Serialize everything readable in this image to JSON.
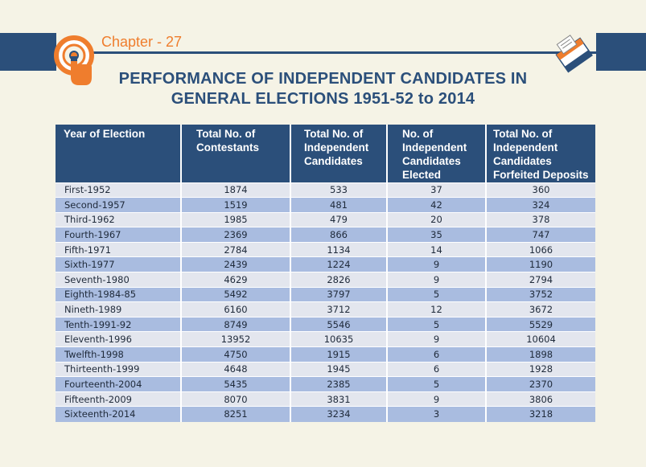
{
  "header": {
    "chapter_label": "Chapter - 27",
    "title_line1": "PERFORMANCE OF INDEPENDENT CANDIDATES IN",
    "title_line2": "GENERAL ELECTIONS 1951-52 to 2014",
    "colors": {
      "band": "#2b4f7a",
      "accent": "#ef7d2d",
      "title": "#2b4f7a"
    },
    "left_icon": "hand-ink-finger-icon",
    "right_icon": "ballot-box-icon"
  },
  "table": {
    "columns": [
      "Year of Election",
      "Total No. of Contestants",
      "Total No. of Independent Candidates",
      "No. of Independent Candidates Elected",
      "Total No. of Independent Candidates Forfeited Deposits"
    ],
    "rows": [
      [
        "First-1952",
        "1874",
        "533",
        "37",
        "360"
      ],
      [
        "Second-1957",
        "1519",
        "481",
        "42",
        "324"
      ],
      [
        "Third-1962",
        "1985",
        "479",
        "20",
        "378"
      ],
      [
        "Fourth-1967",
        "2369",
        "866",
        "35",
        "747"
      ],
      [
        "Fifth-1971",
        "2784",
        "1134",
        "14",
        "1066"
      ],
      [
        "Sixth-1977",
        "2439",
        "1224",
        "9",
        "1190"
      ],
      [
        "Seventh-1980",
        "4629",
        "2826",
        "9",
        "2794"
      ],
      [
        "Eighth-1984-85",
        "5492",
        "3797",
        "5",
        "3752"
      ],
      [
        "Nineth-1989",
        "6160",
        "3712",
        "12",
        "3672"
      ],
      [
        "Tenth-1991-92",
        "8749",
        "5546",
        "5",
        "5529"
      ],
      [
        "Eleventh-1996",
        "13952",
        "10635",
        "9",
        "10604"
      ],
      [
        "Twelfth-1998",
        "4750",
        "1915",
        "6",
        "1898"
      ],
      [
        "Thirteenth-1999",
        "4648",
        "1945",
        "6",
        "1928"
      ],
      [
        "Fourteenth-2004",
        "5435",
        "2385",
        "5",
        "2370"
      ],
      [
        "Fifteenth-2009",
        "8070",
        "3831",
        "9",
        "3806"
      ],
      [
        "Sixteenth-2014",
        "8251",
        "3234",
        "3",
        "3218"
      ]
    ]
  }
}
